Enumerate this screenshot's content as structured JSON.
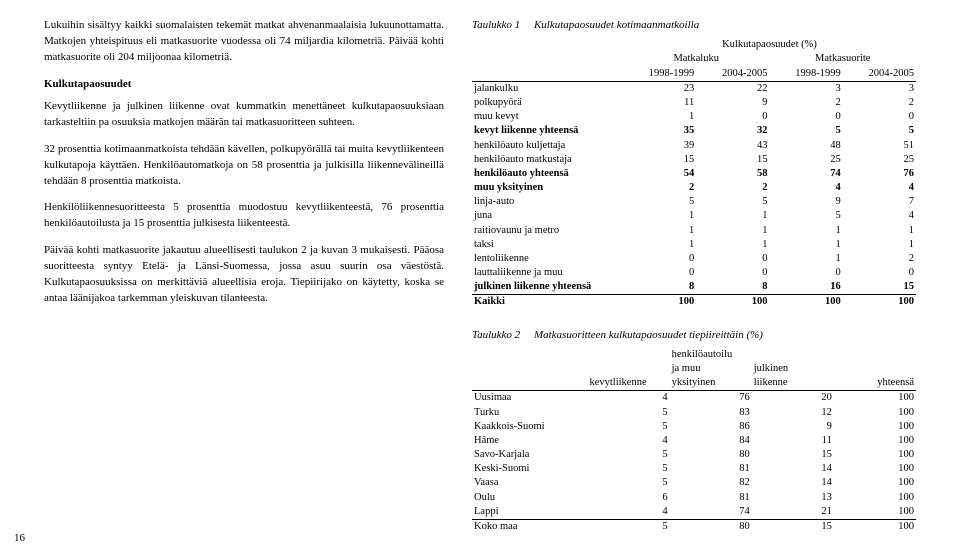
{
  "pageNumber": "16",
  "leftColumn": {
    "p1": "Lukuihin sisältyy kaikki suomalaisten tekemät matkat ahvenanmaalaisia lukuun­ottamatta. Matkojen yhteispituus eli matkasuorite vuodessa oli 74 miljardia kilo­metriä. Päivää kohti matkasuorite oli 204 miljoonaa kilometriä.",
    "subhead": "Kulkutapaosuudet",
    "p2": "Kevytliikenne ja julkinen liikenne ovat kummatkin menettäneet kulkutapa­osuuksiaan tarkasteltiin pa osuuksia matkojen määrän tai matkasuoritteen suhteen.",
    "p3": "32 prosenttia kotimaanmatkoista tehdään kävellen, polkupyörällä tai muita kevyt­liikenteen kulkutapoja käyttäen. Henkilöautomatkoja on 58 prosenttia ja julkisil­la liikennevälineillä tehdään 8 prosenttia matkoista.",
    "p4": "Henkilöliikennesuoritteesta 5 prosenttia muodostuu kevytliikenteestä, 76 prosenttia henkilöautoilusta ja 15 prosenttia julkisesta liikenteestä.",
    "p5": "Päivää kohti matkasuorite jakautuu alueellisesti taulukon 2 ja kuvan 3 mukaises­ti. Pääosa suoritteesta syntyy Etelä- ja Länsi-Suomessa, jossa asuu suurin osa väestöstä. Kulkutapaosuuksissa on merkittäviä alueellisia eroja. Tiepiirijako on käytetty, koska se antaa läänijakoa tarkemman yleiskuvan tilanteesta."
  },
  "table1": {
    "titleLabel": "Taulukko 1",
    "titleText": "Kulkutapaosuudet kotimaanmatkoilla",
    "superHeader": "Kulkutapaosuudet (%)",
    "colGroup1": "Matkaluku",
    "colGroup2": "Matkasuorite",
    "c1": "1998-1999",
    "c2": "2004-2005",
    "c3": "1998-1999",
    "c4": "2004-2005",
    "rows": [
      {
        "label": "jalankulku",
        "v": [
          23,
          22,
          3,
          3
        ],
        "bold": false
      },
      {
        "label": "polkupyörä",
        "v": [
          11,
          9,
          2,
          2
        ],
        "bold": false
      },
      {
        "label": "muu kevyt",
        "v": [
          1,
          0,
          0,
          0
        ],
        "bold": false
      },
      {
        "label": "kevyt liikenne yhteensä",
        "v": [
          35,
          32,
          5,
          5
        ],
        "bold": true
      },
      {
        "label": "henkilöauto kuljettaja",
        "v": [
          39,
          43,
          48,
          51
        ],
        "bold": false
      },
      {
        "label": "henkilöauto matkustaja",
        "v": [
          15,
          15,
          25,
          25
        ],
        "bold": false
      },
      {
        "label": "henkilöauto yhteensä",
        "v": [
          54,
          58,
          74,
          76
        ],
        "bold": true
      },
      {
        "label": "muu yksityinen",
        "v": [
          2,
          2,
          4,
          4
        ],
        "bold": true
      },
      {
        "label": "linja-auto",
        "v": [
          5,
          5,
          9,
          7
        ],
        "bold": false
      },
      {
        "label": "juna",
        "v": [
          1,
          1,
          5,
          4
        ],
        "bold": false
      },
      {
        "label": "raitiovaunu ja metro",
        "v": [
          1,
          1,
          1,
          1
        ],
        "bold": false
      },
      {
        "label": "taksi",
        "v": [
          1,
          1,
          1,
          1
        ],
        "bold": false
      },
      {
        "label": "lentoliikenne",
        "v": [
          0,
          0,
          1,
          2
        ],
        "bold": false
      },
      {
        "label": "lauttaliikenne ja muu",
        "v": [
          0,
          0,
          0,
          0
        ],
        "bold": false
      },
      {
        "label": "julkinen liikenne yhteensä",
        "v": [
          8,
          8,
          16,
          15
        ],
        "bold": true
      },
      {
        "label": "Kaikki",
        "v": [
          100,
          100,
          100,
          100
        ],
        "bold": true
      }
    ]
  },
  "table2": {
    "titleLabel": "Taulukko 2",
    "titleText": "Matkasuoritteen kulkutapaosuudet tiepiireittäin (%)",
    "h1": "kevytliikenne",
    "h2a": "henkilöautoilu",
    "h2b": "ja muu",
    "h2c": "yksityinen",
    "h3a": "julkinen",
    "h3b": "liikenne",
    "h4": "yhteensä",
    "rows": [
      {
        "label": "Uusimaa",
        "v": [
          4,
          76,
          20,
          100
        ]
      },
      {
        "label": "Turku",
        "v": [
          5,
          83,
          12,
          100
        ]
      },
      {
        "label": "Kaakkois-Suomi",
        "v": [
          5,
          86,
          9,
          100
        ]
      },
      {
        "label": "Häme",
        "v": [
          4,
          84,
          11,
          100
        ]
      },
      {
        "label": "Savo-Karjala",
        "v": [
          5,
          80,
          15,
          100
        ]
      },
      {
        "label": "Keski-Suomi",
        "v": [
          5,
          81,
          14,
          100
        ]
      },
      {
        "label": "Vaasa",
        "v": [
          5,
          82,
          14,
          100
        ]
      },
      {
        "label": "Oulu",
        "v": [
          6,
          81,
          13,
          100
        ]
      },
      {
        "label": "Lappi",
        "v": [
          4,
          74,
          21,
          100
        ]
      },
      {
        "label": "Koko maa",
        "v": [
          5,
          80,
          15,
          100
        ]
      }
    ]
  }
}
